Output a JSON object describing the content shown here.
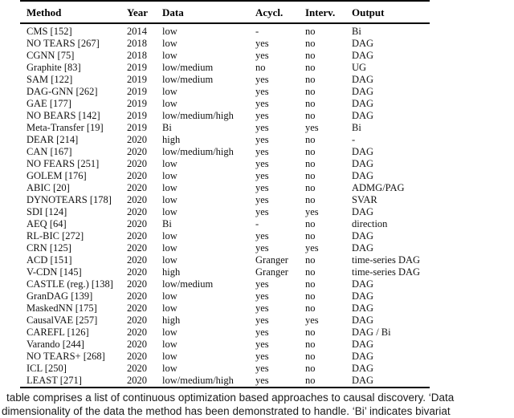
{
  "table": {
    "columns": [
      "Method",
      "Year",
      "Data",
      "Acycl.",
      "Interv.",
      "Output"
    ],
    "rows": [
      [
        "CMS [152]",
        "2014",
        "low",
        "-",
        "no",
        "Bi"
      ],
      [
        "NO TEARS [267]",
        "2018",
        "low",
        "yes",
        "no",
        "DAG"
      ],
      [
        "CGNN [75]",
        "2018",
        "low",
        "yes",
        "no",
        "DAG"
      ],
      [
        "Graphite [83]",
        "2019",
        "low/medium",
        "no",
        "no",
        "UG"
      ],
      [
        "SAM [122]",
        "2019",
        "low/medium",
        "yes",
        "no",
        "DAG"
      ],
      [
        "DAG-GNN [262]",
        "2019",
        "low",
        "yes",
        "no",
        "DAG"
      ],
      [
        "GAE [177]",
        "2019",
        "low",
        "yes",
        "no",
        "DAG"
      ],
      [
        "NO BEARS [142]",
        "2019",
        "low/medium/high",
        "yes",
        "no",
        "DAG"
      ],
      [
        "Meta-Transfer [19]",
        "2019",
        "Bi",
        "yes",
        "yes",
        "Bi"
      ],
      [
        "DEAR [214]",
        "2020",
        "high",
        "yes",
        "no",
        "-"
      ],
      [
        "CAN [167]",
        "2020",
        "low/medium/high",
        "yes",
        "no",
        "DAG"
      ],
      [
        "NO FEARS [251]",
        "2020",
        "low",
        "yes",
        "no",
        "DAG"
      ],
      [
        "GOLEM [176]",
        "2020",
        "low",
        "yes",
        "no",
        "DAG"
      ],
      [
        "ABIC [20]",
        "2020",
        "low",
        "yes",
        "no",
        "ADMG/PAG"
      ],
      [
        "DYNOTEARS [178]",
        "2020",
        "low",
        "yes",
        "no",
        "SVAR"
      ],
      [
        "SDI [124]",
        "2020",
        "low",
        "yes",
        "yes",
        "DAG"
      ],
      [
        "AEQ [64]",
        "2020",
        "Bi",
        "-",
        "no",
        "direction"
      ],
      [
        "RL-BIC [272]",
        "2020",
        "low",
        "yes",
        "no",
        "DAG"
      ],
      [
        "CRN [125]",
        "2020",
        "low",
        "yes",
        "yes",
        "DAG"
      ],
      [
        "ACD [151]",
        "2020",
        "low",
        "Granger",
        "no",
        "time-series DAG"
      ],
      [
        "V-CDN [145]",
        "2020",
        "high",
        "Granger",
        "no",
        "time-series DAG"
      ],
      [
        "CASTLE (reg.) [138]",
        "2020",
        "low/medium",
        "yes",
        "no",
        "DAG"
      ],
      [
        "GranDAG [139]",
        "2020",
        "low",
        "yes",
        "no",
        "DAG"
      ],
      [
        "MaskedNN [175]",
        "2020",
        "low",
        "yes",
        "no",
        "DAG"
      ],
      [
        "CausalVAE [257]",
        "2020",
        "high",
        "yes",
        "yes",
        "DAG"
      ],
      [
        "CAREFL [126]",
        "2020",
        "low",
        "yes",
        "no",
        "DAG / Bi"
      ],
      [
        "Varando [244]",
        "2020",
        "low",
        "yes",
        "no",
        "DAG"
      ],
      [
        "NO TEARS+ [268]",
        "2020",
        "low",
        "yes",
        "no",
        "DAG"
      ],
      [
        "ICL [250]",
        "2020",
        "low",
        "yes",
        "no",
        "DAG"
      ],
      [
        "LEAST [271]",
        "2020",
        "low/medium/high",
        "yes",
        "no",
        "DAG"
      ]
    ]
  },
  "caption": {
    "line1": "table comprises a list of continuous optimization based approaches to causal discovery. ‘Data",
    "line2": "dimensionality of the data the method has been demonstrated to handle. ‘Bi’ indicates bivariat"
  },
  "colors": {
    "background": "#ffffff",
    "rule": "#000000",
    "text": "#121212"
  }
}
